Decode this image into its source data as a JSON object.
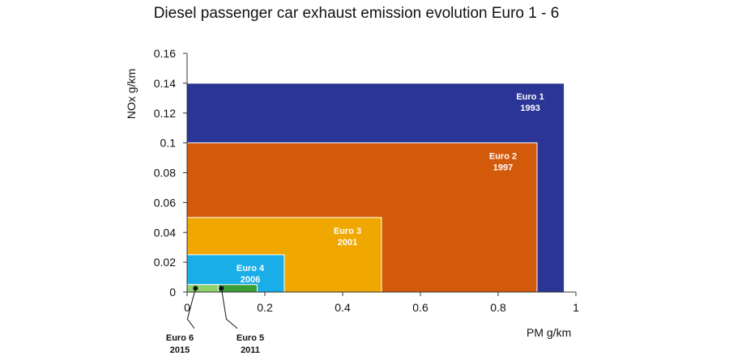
{
  "chart_data": {
    "type": "area",
    "title": "Diesel passenger car exhaust emission evolution Euro 1 - 6",
    "xlabel": "PM  g/km",
    "ylabel": "NOx  g/km",
    "xlim": [
      0,
      1
    ],
    "ylim": [
      0,
      0.16
    ],
    "xticks": [
      "0",
      "0.2",
      "0.4",
      "0.6",
      "0.8",
      "1"
    ],
    "yticks": [
      "0",
      "0.02",
      "0.04",
      "0.06",
      "0.08",
      "0.1",
      "0.12",
      "0.14",
      "0.16"
    ],
    "series": [
      {
        "name": "Euro 1",
        "year": "1993",
        "pm": 0.97,
        "nox": 0.14,
        "color": "#2a3596",
        "label_inside": true
      },
      {
        "name": "Euro 2",
        "year": "1997",
        "pm": 0.9,
        "nox": 0.1,
        "color": "#d35a0a",
        "label_inside": true
      },
      {
        "name": "Euro 3",
        "year": "2001",
        "pm": 0.5,
        "nox": 0.05,
        "color": "#f0a800",
        "label_inside": true
      },
      {
        "name": "Euro 4",
        "year": "2006",
        "pm": 0.25,
        "nox": 0.025,
        "color": "#1aaee8",
        "label_inside": true
      },
      {
        "name": "Euro 5",
        "year": "2011",
        "pm": 0.18,
        "nox": 0.005,
        "color": "#3a9e36",
        "label_inside": false
      },
      {
        "name": "Euro 6",
        "year": "2015",
        "pm": 0.08,
        "nox": 0.005,
        "color": "#8fd16a",
        "label_inside": false
      }
    ],
    "grid": false,
    "legend": "none"
  }
}
